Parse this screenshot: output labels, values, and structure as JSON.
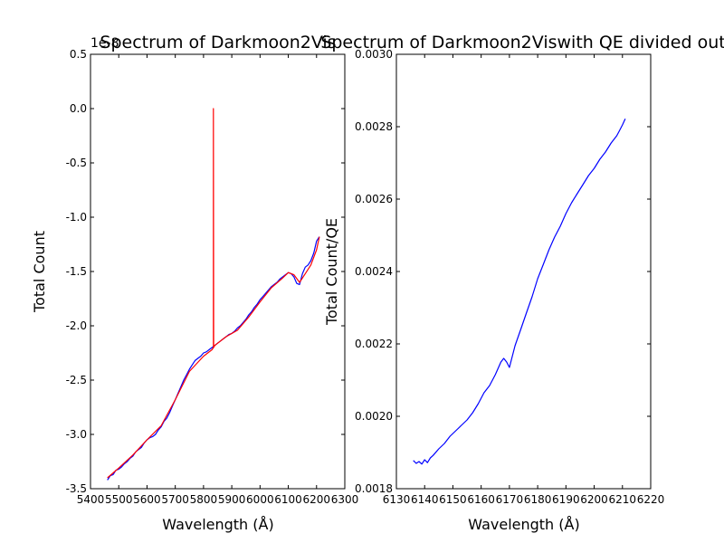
{
  "chart_data": [
    {
      "type": "line",
      "title": "Spectrum of Darkmoon2Vis",
      "xlabel": "Wavelength (Å)",
      "ylabel": "Total Count",
      "y_offset_label": "1e-8",
      "xlim": [
        5400,
        6300
      ],
      "ylim": [
        -3.5,
        0.5
      ],
      "xticks": [
        "5400",
        "5500",
        "5600",
        "5700",
        "5800",
        "5900",
        "6000",
        "6100",
        "6200",
        "6300"
      ],
      "yticks": [
        "-3.5",
        "-3.0",
        "-2.5",
        "-2.0",
        "-1.5",
        "-1.0",
        "-0.5",
        "0.0",
        "0.5"
      ],
      "grid": false,
      "series": [
        {
          "color": "#0000ff",
          "x": [
            5460,
            5470,
            5480,
            5490,
            5500,
            5510,
            5520,
            5530,
            5540,
            5550,
            5560,
            5570,
            5580,
            5590,
            5600,
            5610,
            5620,
            5630,
            5640,
            5650,
            5660,
            5670,
            5680,
            5690,
            5700,
            5710,
            5720,
            5730,
            5740,
            5750,
            5760,
            5770,
            5780,
            5790,
            5800,
            5810,
            5820,
            5830,
            5840,
            5850,
            5860,
            5870,
            5880,
            5890,
            5900,
            5910,
            5920,
            5930,
            5940,
            5950,
            5960,
            5970,
            5980,
            5990,
            6000,
            6010,
            6020,
            6030,
            6040,
            6050,
            6060,
            6070,
            6080,
            6090,
            6100,
            6110,
            6120,
            6130,
            6140,
            6150,
            6160,
            6170,
            6180,
            6190,
            6200,
            6210
          ],
          "values": [
            -3.42,
            -3.38,
            -3.37,
            -3.33,
            -3.32,
            -3.3,
            -3.27,
            -3.25,
            -3.22,
            -3.2,
            -3.16,
            -3.14,
            -3.12,
            -3.08,
            -3.05,
            -3.03,
            -3.02,
            -3.0,
            -2.96,
            -2.93,
            -2.88,
            -2.85,
            -2.8,
            -2.74,
            -2.68,
            -2.62,
            -2.56,
            -2.5,
            -2.45,
            -2.4,
            -2.36,
            -2.32,
            -2.3,
            -2.28,
            -2.25,
            -2.24,
            -2.22,
            -2.2,
            -2.18,
            -2.16,
            -2.14,
            -2.12,
            -2.1,
            -2.08,
            -2.07,
            -2.05,
            -2.02,
            -2.0,
            -1.97,
            -1.94,
            -1.9,
            -1.87,
            -1.83,
            -1.8,
            -1.76,
            -1.73,
            -1.7,
            -1.67,
            -1.64,
            -1.62,
            -1.6,
            -1.57,
            -1.55,
            -1.53,
            -1.51,
            -1.52,
            -1.55,
            -1.61,
            -1.62,
            -1.52,
            -1.46,
            -1.44,
            -1.4,
            -1.33,
            -1.22,
            -1.18
          ]
        },
        {
          "color": "#ff0000",
          "x": [
            5460,
            5500,
            5550,
            5600,
            5650,
            5700,
            5750,
            5800,
            5830,
            5835,
            5835,
            5836,
            5840,
            5880,
            5920,
            5960,
            6000,
            6040,
            6080,
            6100,
            6120,
            6140,
            6160,
            6180,
            6200,
            6210
          ],
          "values": [
            -3.4,
            -3.31,
            -3.19,
            -3.05,
            -2.92,
            -2.68,
            -2.42,
            -2.28,
            -2.22,
            -2.2,
            0.0,
            -2.2,
            -2.18,
            -2.1,
            -2.04,
            -1.92,
            -1.78,
            -1.65,
            -1.56,
            -1.51,
            -1.53,
            -1.6,
            -1.52,
            -1.44,
            -1.3,
            -1.18
          ]
        }
      ]
    },
    {
      "type": "line",
      "title": "Spectrum of Darkmoon2Viswith QE divided out",
      "xlabel": "Wavelength (Å)",
      "ylabel": "Total Count/QE",
      "xlim": [
        6130,
        6220
      ],
      "ylim": [
        0.0018,
        0.003
      ],
      "xticks": [
        "6130",
        "6140",
        "6150",
        "6160",
        "6170",
        "6180",
        "6190",
        "6200",
        "6210",
        "6220"
      ],
      "yticks": [
        "0.0018",
        "0.0020",
        "0.0022",
        "0.0024",
        "0.0026",
        "0.0028",
        "0.0030"
      ],
      "grid": false,
      "series": [
        {
          "color": "#0000ff",
          "x": [
            6136,
            6137,
            6138,
            6139,
            6140,
            6141,
            6142,
            6143,
            6145,
            6147,
            6149,
            6151,
            6153,
            6155,
            6157,
            6159,
            6161,
            6163,
            6165,
            6167,
            6168,
            6169,
            6170,
            6172,
            6174,
            6176,
            6178,
            6180,
            6182,
            6184,
            6186,
            6188,
            6190,
            6192,
            6194,
            6196,
            6198,
            6200,
            6202,
            6204,
            6206,
            6208,
            6209,
            6210,
            6211
          ],
          "values": [
            0.001878,
            0.00187,
            0.001875,
            0.001868,
            0.00188,
            0.001872,
            0.001885,
            0.001892,
            0.00191,
            0.001925,
            0.001945,
            0.00196,
            0.001975,
            0.00199,
            0.00201,
            0.002035,
            0.002065,
            0.002085,
            0.002115,
            0.00215,
            0.00216,
            0.00215,
            0.002135,
            0.002195,
            0.00224,
            0.002285,
            0.00233,
            0.00238,
            0.00242,
            0.00246,
            0.002495,
            0.002525,
            0.00256,
            0.00259,
            0.002615,
            0.00264,
            0.002665,
            0.002685,
            0.00271,
            0.00273,
            0.002755,
            0.002775,
            0.00279,
            0.002805,
            0.002822
          ]
        }
      ]
    }
  ]
}
